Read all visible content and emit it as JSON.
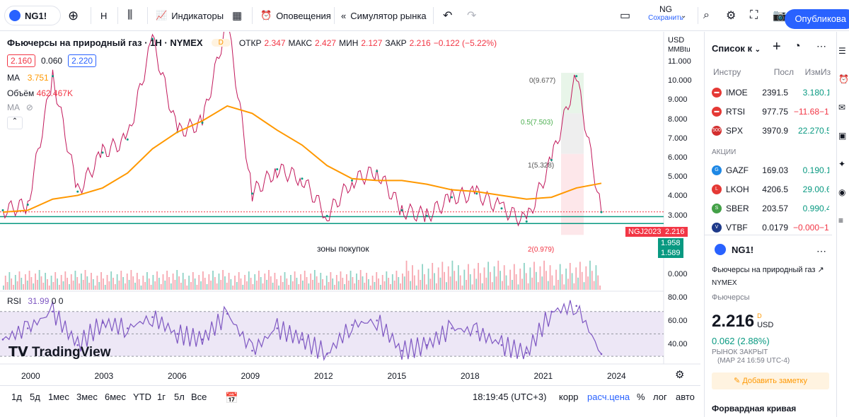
{
  "toolbar": {
    "symbol": "NG1!",
    "interval": "Н",
    "indicators": "Индикаторы",
    "alerts": "Оповещения",
    "replay": "Симулятор рынка",
    "ticker": "NG",
    "save": "Сохранить",
    "publish": "Опубликова"
  },
  "legend": {
    "title": "Фьючерсы на природный газ · 1Н · NYMEX",
    "badge": "D",
    "open_l": "ОТКР",
    "open": "2.347",
    "high_l": "МАКС",
    "high": "2.427",
    "low_l": "МИН",
    "low": "2.127",
    "close_l": "ЗАКР",
    "close": "2.216",
    "chg": "−0.122 (−5.22%)",
    "bid": "2.160",
    "spread": "0.060",
    "ask": "2.220",
    "ma_l": "MA",
    "ma": "3.751",
    "vol_l": "Объём",
    "vol": "462.467K",
    "ma2_l": "MA"
  },
  "price_axis": {
    "currency": "USD",
    "unit": "MMBtu",
    "ticks": [
      "11.000",
      "10.000",
      "9.000",
      "8.000",
      "7.000",
      "6.000",
      "5.000",
      "4.000",
      "3.000"
    ],
    "vol_zero": "0.000",
    "rsi_ticks": [
      "80.00",
      "60.00",
      "40.00"
    ]
  },
  "tags": {
    "symbol": "NGJ2023",
    "price": "2.216",
    "l1": "1.958",
    "l2": "1.589"
  },
  "fib": {
    "f0": "0(9.677)",
    "f05": "0.5(7.503)",
    "f1": "1(5.328)",
    "f2": "2(0.979)"
  },
  "zone_label": "зоны покупок",
  "rsi": {
    "label": "RSI",
    "value": "31.99",
    "a": "0",
    "b": "0"
  },
  "watermark": "TradingView",
  "years": [
    "2000",
    "2003",
    "2006",
    "2009",
    "2012",
    "2015",
    "2018",
    "2021",
    "2024"
  ],
  "bottom": {
    "ranges": [
      "1д",
      "5д",
      "1мес",
      "3мес",
      "6мес",
      "YTD",
      "1г",
      "5л",
      "Все"
    ],
    "time": "18:19:45 (UTC+3)",
    "corr": "корр",
    "adj": "расч.цена",
    "pct": "%",
    "log": "лог",
    "auto": "авто"
  },
  "watchlist": {
    "title": "Список к",
    "cols": [
      "Инстру",
      "Посл",
      "Изм",
      "Из"
    ],
    "rows": [
      {
        "sym": "IMOE",
        "last": "2391.5",
        "chg": "3.18",
        "pct": "0.1",
        "up": true,
        "color": "#e53935"
      },
      {
        "sym": "RTSI",
        "last": "977.75",
        "chg": "−11.68",
        "pct": "−1.",
        "up": false,
        "color": "#e53935"
      },
      {
        "sym": "SPX",
        "last": "3970.9",
        "chg": "22.27",
        "pct": "0.5",
        "up": true,
        "color": "#d32f2f"
      }
    ],
    "section": "АКЦИИ",
    "rows2": [
      {
        "sym": "GAZF",
        "last": "169.03",
        "chg": "0.19",
        "pct": "0.1",
        "up": true,
        "color": "#1e88e5"
      },
      {
        "sym": "LKOH",
        "last": "4206.5",
        "chg": "29.0",
        "pct": "0.6",
        "up": true,
        "color": "#e53935"
      },
      {
        "sym": "SBER",
        "last": "203.57",
        "chg": "0.99",
        "pct": "0.4",
        "up": true,
        "color": "#43a047"
      },
      {
        "sym": "VTBF",
        "last": "0.0179",
        "chg": "−0.000",
        "pct": "−1.",
        "up": false,
        "color": "#1e3a8a"
      }
    ]
  },
  "details": {
    "sym": "NG1!",
    "name": "Фьючерсы на природный газ",
    "exch": "NYMEX",
    "type": "Фьючерсы",
    "price": "2.216",
    "sup": "D",
    "cur": "USD",
    "chg": "0.062 (2.88%)",
    "status": "РЫНОК ЗАКРЫТ",
    "date": "(МАР 24 16:59 UTC-4)",
    "note": "Добавить заметку",
    "fwd": "Форвардная кривая"
  },
  "chart_data": {
    "type": "line",
    "title": "Фьючерсы на природный газ · 1Н · NYMEX",
    "x": [
      1999,
      2000,
      2001,
      2002,
      2003,
      2004,
      2005,
      2006,
      2007,
      2008,
      2009,
      2010,
      2011,
      2012,
      2013,
      2014,
      2015,
      2016,
      2017,
      2018,
      2019,
      2020,
      2021,
      2022,
      2023
    ],
    "values": [
      2.3,
      2.6,
      9.5,
      3.3,
      5.4,
      6.1,
      11.5,
      6.5,
      7.0,
      12.5,
      3.2,
      4.5,
      4.0,
      2.0,
      3.9,
      4.4,
      2.3,
      2.0,
      3.0,
      3.2,
      2.4,
      1.7,
      5.0,
      9.5,
      2.2
    ],
    "ma": [
      2.2,
      2.3,
      2.9,
      3.1,
      3.5,
      4.3,
      5.6,
      6.5,
      7.1,
      7.9,
      7.5,
      6.6,
      5.8,
      4.7,
      4.0,
      3.9,
      3.9,
      3.7,
      3.4,
      3.3,
      3.1,
      2.9,
      3.0,
      3.5,
      3.75
    ],
    "ylim": [
      0.5,
      11.5
    ],
    "rsi": [
      45,
      55,
      70,
      40,
      60,
      55,
      65,
      50,
      45,
      68,
      35,
      55,
      45,
      32,
      58,
      62,
      35,
      40,
      55,
      52,
      40,
      33,
      70,
      75,
      32
    ],
    "rsi_lim": [
      25,
      85
    ],
    "levels": [
      1.958,
      1.589
    ]
  }
}
